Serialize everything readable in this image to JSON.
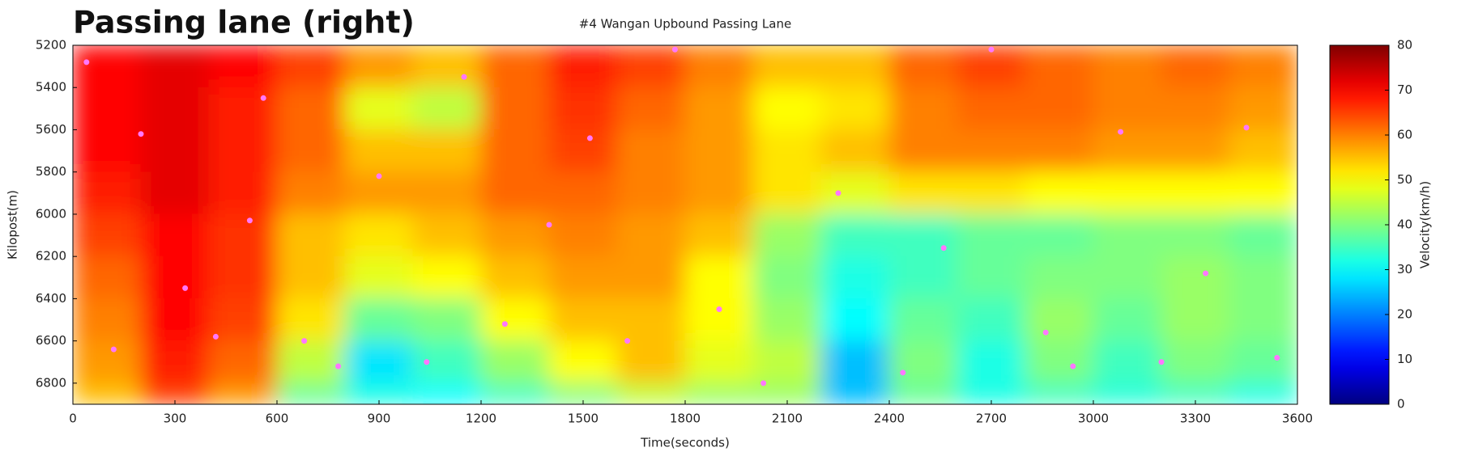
{
  "chart_data": {
    "type": "heatmap",
    "title": "Passing lane (right)",
    "subtitle": "#4 Wangan Upbound Passing Lane",
    "x_label": "Time(seconds)",
    "y_label": "Kilopost(m)",
    "colorbar_label": "Velocity(km/h)",
    "colormap": "jet",
    "y_inverted": true,
    "xlim": [
      0,
      3600
    ],
    "xticks": [
      0,
      300,
      600,
      900,
      1200,
      1500,
      1800,
      2100,
      2400,
      2700,
      3000,
      3300,
      3600
    ],
    "ylim": [
      5200,
      6900
    ],
    "yticks": [
      5200,
      5400,
      5600,
      5800,
      6000,
      6200,
      6400,
      6600,
      6800
    ],
    "zlim": [
      0,
      80
    ],
    "zticks": [
      0,
      10,
      20,
      30,
      40,
      50,
      60,
      70,
      80
    ],
    "x_bins": [
      0,
      200,
      400,
      600,
      800,
      1000,
      1200,
      1400,
      1600,
      1800,
      2000,
      2200,
      2400,
      2600,
      2800,
      3000,
      3200,
      3400,
      3600
    ],
    "y_bins": [
      5200,
      5400,
      5600,
      5800,
      6000,
      6200,
      6400,
      6600,
      6800,
      6900
    ],
    "z": [
      [
        70,
        72,
        70,
        65,
        58,
        55,
        62,
        68,
        65,
        60,
        55,
        55,
        62,
        65,
        62,
        60,
        62,
        60
      ],
      [
        70,
        72,
        68,
        62,
        48,
        45,
        62,
        66,
        62,
        58,
        50,
        52,
        60,
        62,
        62,
        60,
        60,
        58
      ],
      [
        70,
        72,
        68,
        62,
        55,
        55,
        62,
        65,
        60,
        58,
        52,
        55,
        60,
        60,
        60,
        58,
        58,
        55
      ],
      [
        68,
        72,
        68,
        60,
        58,
        58,
        62,
        62,
        60,
        58,
        52,
        48,
        52,
        52,
        50,
        50,
        50,
        50
      ],
      [
        65,
        70,
        66,
        55,
        52,
        55,
        58,
        60,
        58,
        55,
        42,
        35,
        35,
        38,
        38,
        40,
        40,
        38
      ],
      [
        62,
        70,
        66,
        55,
        48,
        50,
        55,
        58,
        58,
        50,
        40,
        32,
        35,
        38,
        40,
        40,
        42,
        40
      ],
      [
        60,
        70,
        65,
        52,
        38,
        40,
        50,
        55,
        55,
        50,
        42,
        30,
        38,
        35,
        42,
        38,
        42,
        40
      ],
      [
        58,
        68,
        62,
        45,
        28,
        35,
        42,
        50,
        55,
        48,
        45,
        25,
        40,
        32,
        40,
        35,
        40,
        38
      ],
      [
        55,
        65,
        58,
        38,
        32,
        30,
        35,
        40,
        45,
        42,
        42,
        25,
        38,
        32,
        35,
        33,
        35,
        32
      ]
    ],
    "points": {
      "color": "#ff77ff",
      "x": [
        40,
        120,
        200,
        330,
        420,
        520,
        560,
        680,
        780,
        900,
        1040,
        1150,
        1270,
        1400,
        1520,
        1630,
        1770,
        1900,
        2030,
        2250,
        2440,
        2560,
        2700,
        2860,
        2940,
        3080,
        3200,
        3330,
        3450,
        3540
      ],
      "y": [
        5280,
        6640,
        5620,
        6350,
        6580,
        6030,
        5450,
        6600,
        6720,
        5820,
        6700,
        5350,
        6520,
        6050,
        5640,
        6600,
        5220,
        6450,
        6800,
        5900,
        6750,
        6160,
        5220,
        6560,
        6720,
        5610,
        6700,
        6280,
        5590,
        6680
      ]
    }
  }
}
